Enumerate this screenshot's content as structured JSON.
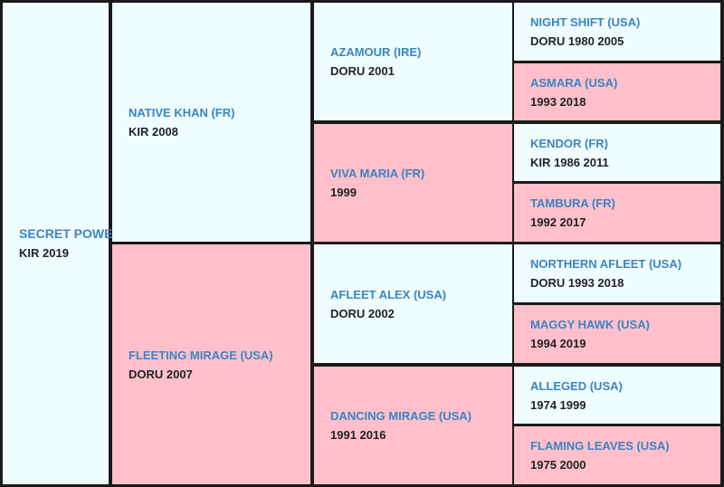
{
  "subject": {
    "name": "SECRET POWER",
    "info": "KIR 2019"
  },
  "sire": {
    "name": "NATIVE KHAN (FR)",
    "info": "KIR 2008"
  },
  "dam": {
    "name": "FLEETING MIRAGE (USA)",
    "info": "DORU 2007"
  },
  "sire_sire": {
    "name": "AZAMOUR (IRE)",
    "info": "DORU 2001"
  },
  "sire_dam": {
    "name": "VIVA MARIA (FR)",
    "info": "1999"
  },
  "dam_sire": {
    "name": "AFLEET ALEX (USA)",
    "info": "DORU 2002"
  },
  "dam_dam": {
    "name": "DANCING MIRAGE (USA)",
    "info": "1991 2016"
  },
  "gen4": [
    {
      "name": "NIGHT SHIFT (USA)",
      "info": "DORU 1980 2005"
    },
    {
      "name": "ASMARA (USA)",
      "info": "1993 2018"
    },
    {
      "name": "KENDOR (FR)",
      "info": "KIR 1986 2011"
    },
    {
      "name": "TAMBURA (FR)",
      "info": "1992 2017"
    },
    {
      "name": "NORTHERN AFLEET (USA)",
      "info": "DORU 1993 2018"
    },
    {
      "name": "MAGGY HAWK (USA)",
      "info": "1994 2019"
    },
    {
      "name": "ALLEGED (USA)",
      "info": "1974 1999"
    },
    {
      "name": "FLAMING LEAVES (USA)",
      "info": "1975 2000"
    }
  ],
  "colors": {
    "male": "#f0fdff",
    "female": "#ffc0cb",
    "name": "#3a84c4",
    "border": "#1a1a1a"
  }
}
